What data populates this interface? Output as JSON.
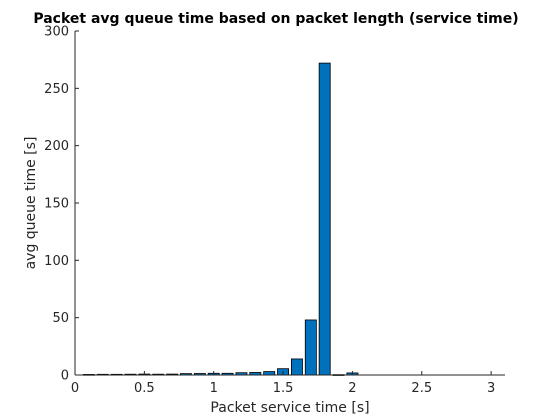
{
  "chart_data": {
    "type": "bar",
    "title": "Packet avg queue time based on packet length (service time)",
    "xlabel": "Packet service time [s]",
    "ylabel": "avg queue time [s]",
    "xlim": [
      0,
      3.1
    ],
    "ylim": [
      0,
      300
    ],
    "xticks": [
      0,
      0.5,
      1,
      1.5,
      2,
      2.5,
      3
    ],
    "xtick_labels": [
      "0",
      "0.5",
      "1",
      "1.5",
      "2",
      "2.5",
      "3"
    ],
    "yticks": [
      0,
      50,
      100,
      150,
      200,
      250,
      300
    ],
    "ytick_labels": [
      "0",
      "50",
      "100",
      "150",
      "200",
      "250",
      "300"
    ],
    "bar_width": 0.08,
    "bar_color": "#0072BD",
    "x": [
      0.1,
      0.2,
      0.3,
      0.4,
      0.5,
      0.6,
      0.7,
      0.8,
      0.9,
      1.0,
      1.1,
      1.2,
      1.3,
      1.4,
      1.5,
      1.6,
      1.7,
      1.8,
      1.9,
      2.0,
      2.1,
      2.2,
      2.3,
      2.4,
      2.5,
      2.6,
      2.7,
      2.8,
      2.9,
      3.0
    ],
    "values": [
      0.5,
      0.6,
      0.6,
      0.7,
      0.8,
      0.7,
      0.8,
      1.2,
      1.3,
      1.5,
      1.5,
      2.0,
      2.2,
      3.0,
      5.5,
      14.0,
      48.0,
      272.0,
      0.3,
      1.8,
      0,
      0,
      0,
      0,
      0,
      0,
      0,
      0,
      0,
      0
    ],
    "grid": false,
    "legend": false
  }
}
